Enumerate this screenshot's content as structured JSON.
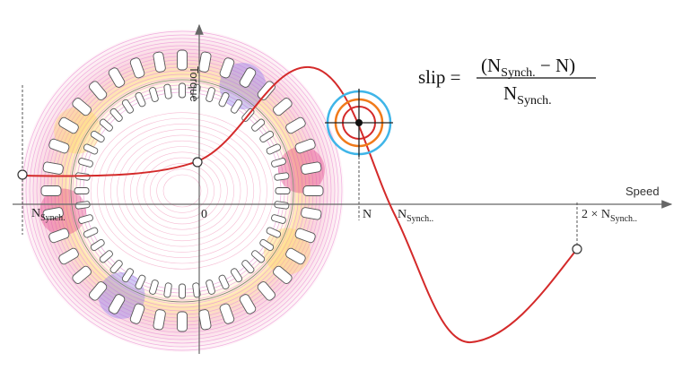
{
  "axes": {
    "y_label": "Torque",
    "x_label": "Speed"
  },
  "tick_labels": {
    "neg_synch": {
      "main": "N",
      "sub": "Synch."
    },
    "zero": "0",
    "n": "N",
    "synch": {
      "main": "N",
      "sub": "Synch.."
    },
    "double_synch": {
      "main": "2 × N",
      "sub": "Synch.."
    }
  },
  "formula": {
    "lhs": "slip =",
    "numerator": {
      "open": "(N",
      "sub": "Synch.",
      "rest": " − N)"
    },
    "denominator": {
      "main": "N",
      "sub": "Synch."
    }
  }
}
